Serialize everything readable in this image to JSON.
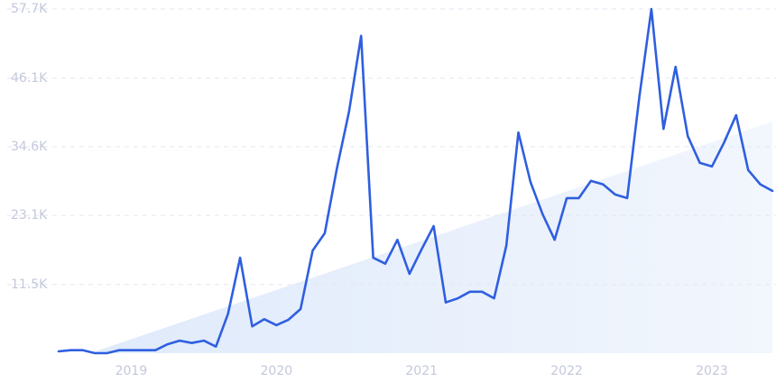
{
  "chart_data": {
    "type": "line",
    "categories": [
      null,
      null,
      null,
      null,
      null,
      null,
      "2019",
      null,
      null,
      null,
      null,
      null,
      null,
      null,
      null,
      null,
      null,
      null,
      "2020",
      null,
      null,
      null,
      null,
      null,
      null,
      null,
      null,
      null,
      null,
      null,
      "2021",
      null,
      null,
      null,
      null,
      null,
      null,
      null,
      null,
      null,
      null,
      null,
      "2022",
      null,
      null,
      null,
      null,
      null,
      null,
      null,
      null,
      null,
      null,
      null,
      "2023",
      null,
      null,
      null,
      null,
      null
    ],
    "series": [
      {
        "color": "#2f5fe0",
        "values": [
          300,
          500,
          500,
          0,
          0,
          500,
          500,
          500,
          500,
          1500,
          2100,
          1700,
          2100,
          1100,
          6600,
          16000,
          4500,
          5700,
          4700,
          5600,
          7400,
          17200,
          20100,
          31000,
          40500,
          53200,
          16000,
          15000,
          19000,
          13300,
          17400,
          21300,
          8500,
          9200,
          10300,
          10300,
          9200,
          18000,
          37000,
          28700,
          23300,
          19000,
          26000,
          26000,
          28900,
          28300,
          26600,
          26000,
          42900,
          57700,
          37600,
          48000,
          36400,
          31900,
          31300,
          35300,
          39900,
          30700,
          28300,
          27200
        ]
      }
    ],
    "ylim": [
      0,
      57700
    ],
    "yticks": [
      {
        "value": 11500,
        "label": "11.5K"
      },
      {
        "value": 23100,
        "label": "23.1K"
      },
      {
        "value": 34600,
        "label": "34.6K"
      },
      {
        "value": 46100,
        "label": "46.1K"
      },
      {
        "value": 57700,
        "label": "57.7K"
      }
    ],
    "grid": true
  }
}
